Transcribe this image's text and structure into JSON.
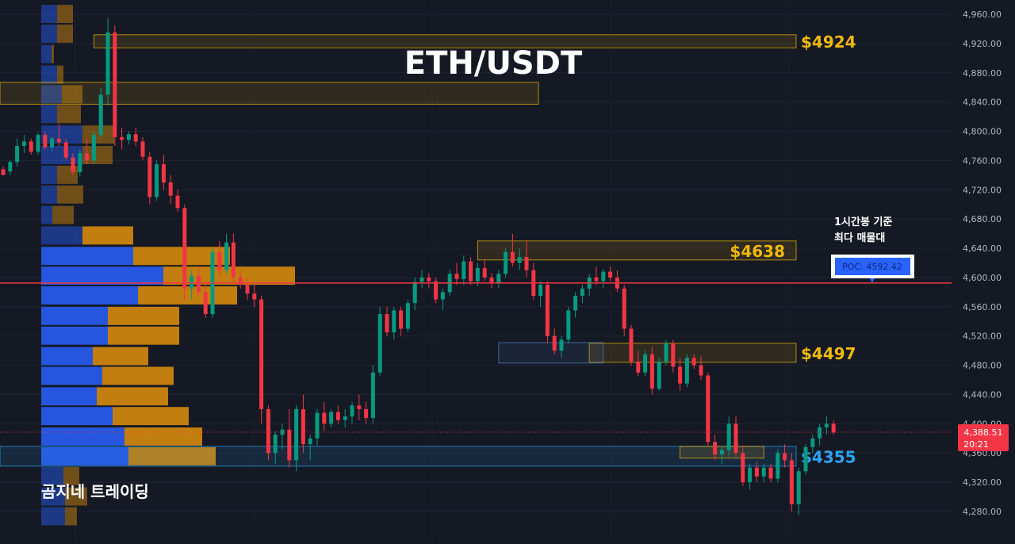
{
  "chart_data": {
    "type": "candlestick",
    "title": "ETH/USDT",
    "watermark": "곰지네 트레이딩",
    "annotation": [
      "1시간봉 기준",
      "최다 매물대"
    ],
    "y_axis": {
      "range": [
        4240,
        4975
      ],
      "ticks": [
        4280,
        4320,
        4360,
        4400,
        4440,
        4480,
        4520,
        4560,
        4600,
        4640,
        4680,
        4720,
        4760,
        4800,
        4840,
        4880,
        4920,
        4960
      ],
      "tick_labels": [
        "4,280.00",
        "4,320.00",
        "4,360.00",
        "4,400.00",
        "4,440.00",
        "4,480.00",
        "4,520.00",
        "4,560.00",
        "4,600.00",
        "4,640.00",
        "4,680.00",
        "4,720.00",
        "4,760.00",
        "4,800.00",
        "4,840.00",
        "4,880.00",
        "4,920.00",
        "4,960.00"
      ]
    },
    "poc": {
      "label": "POC: 4592.42",
      "price": 4592.42,
      "color": "#f23645"
    },
    "current_price": {
      "label": "4,388.51",
      "countdown": "20:21",
      "price": 4388.51,
      "color": "#f23645"
    },
    "zones": [
      {
        "label": "$4924",
        "top": 4932,
        "bottom": 4914,
        "start": 13,
        "color": "#f0b90b"
      },
      {
        "label": "",
        "top": 4867,
        "bottom": 4837,
        "start": -1,
        "end_price_x": 0.53,
        "color": "#f0b90b"
      },
      {
        "label": "$4638",
        "top": 4650,
        "bottom": 4624,
        "start": 68,
        "color": "#f0b90b"
      },
      {
        "label": "$4497",
        "top": 4510,
        "bottom": 4484,
        "start": 84,
        "color": "#f0b90b"
      },
      {
        "label": "",
        "top": 4511,
        "bottom": 4483,
        "start": 71,
        "end": 86,
        "color": "#4c82c7"
      },
      {
        "label": "$4355",
        "top": 4369,
        "bottom": 4342,
        "start": -1,
        "color": "#2aa5f5"
      },
      {
        "label": "",
        "top": 4369,
        "bottom": 4353,
        "start": 97,
        "end": 109,
        "color": "#f0b90b"
      }
    ],
    "volume_profile": {
      "bins_low": [
        4260,
        4287,
        4315,
        4342,
        4369,
        4397,
        4424,
        4452,
        4479,
        4507,
        4534,
        4562,
        4589,
        4616,
        4644,
        4672,
        4700,
        4727,
        4754,
        4782,
        4810,
        4837,
        4864,
        4892,
        4920,
        4947
      ],
      "buy": [
        30,
        30,
        28,
        110,
        105,
        90,
        70,
        77,
        65,
        84,
        84,
        122,
        154,
        116,
        52,
        14,
        20,
        20,
        52,
        52,
        20,
        26,
        20,
        13,
        20,
        20
      ],
      "sell": [
        15,
        28,
        20,
        110,
        98,
        96,
        90,
        90,
        70,
        90,
        90,
        125,
        166,
        122,
        64,
        27,
        33,
        26,
        38,
        40,
        30,
        26,
        8,
        3,
        20,
        20
      ]
    },
    "candles": [
      [
        4748,
        4752,
        4742,
        4740
      ],
      [
        4745,
        4760,
        4740,
        4758
      ],
      [
        4758,
        4790,
        4752,
        4780
      ],
      [
        4780,
        4795,
        4770,
        4786
      ],
      [
        4786,
        4790,
        4768,
        4772
      ],
      [
        4772,
        4798,
        4768,
        4795
      ],
      [
        4795,
        4800,
        4775,
        4778
      ],
      [
        4778,
        4792,
        4772,
        4790
      ],
      [
        4790,
        4810,
        4780,
        4785
      ],
      [
        4785,
        4790,
        4760,
        4764
      ],
      [
        4764,
        4770,
        4740,
        4744
      ],
      [
        4744,
        4775,
        4738,
        4770
      ],
      [
        4770,
        4790,
        4755,
        4760
      ],
      [
        4760,
        4800,
        4755,
        4795
      ],
      [
        4795,
        4860,
        4790,
        4850
      ],
      [
        4850,
        4955,
        4835,
        4935
      ],
      [
        4935,
        4945,
        4780,
        4792
      ],
      [
        4792,
        4805,
        4775,
        4788
      ],
      [
        4788,
        4800,
        4782,
        4796
      ],
      [
        4796,
        4805,
        4780,
        4786
      ],
      [
        4786,
        4792,
        4760,
        4765
      ],
      [
        4765,
        4772,
        4700,
        4710
      ],
      [
        4710,
        4760,
        4705,
        4755
      ],
      [
        4755,
        4768,
        4720,
        4730
      ],
      [
        4730,
        4740,
        4700,
        4712
      ],
      [
        4712,
        4720,
        4690,
        4695
      ],
      [
        4695,
        4700,
        4570,
        4585
      ],
      [
        4585,
        4610,
        4570,
        4602
      ],
      [
        4602,
        4615,
        4575,
        4580
      ],
      [
        4580,
        4590,
        4545,
        4550
      ],
      [
        4550,
        4640,
        4545,
        4635
      ],
      [
        4635,
        4650,
        4600,
        4610
      ],
      [
        4610,
        4660,
        4605,
        4648
      ],
      [
        4648,
        4660,
        4595,
        4600
      ],
      [
        4600,
        4610,
        4585,
        4590
      ],
      [
        4590,
        4600,
        4570,
        4578
      ],
      [
        4578,
        4590,
        4560,
        4570
      ],
      [
        4570,
        4575,
        4400,
        4420
      ],
      [
        4420,
        4425,
        4350,
        4360
      ],
      [
        4360,
        4390,
        4345,
        4385
      ],
      [
        4385,
        4400,
        4365,
        4392
      ],
      [
        4392,
        4420,
        4340,
        4350
      ],
      [
        4350,
        4425,
        4335,
        4420
      ],
      [
        4420,
        4440,
        4360,
        4372
      ],
      [
        4372,
        4385,
        4350,
        4380
      ],
      [
        4380,
        4420,
        4370,
        4415
      ],
      [
        4415,
        4430,
        4390,
        4400
      ],
      [
        4400,
        4420,
        4395,
        4416
      ],
      [
        4416,
        4425,
        4400,
        4405
      ],
      [
        4405,
        4420,
        4395,
        4410
      ],
      [
        4410,
        4430,
        4400,
        4425
      ],
      [
        4425,
        4440,
        4405,
        4420
      ],
      [
        4420,
        4430,
        4400,
        4408
      ],
      [
        4408,
        4480,
        4400,
        4470
      ],
      [
        4470,
        4560,
        4465,
        4550
      ],
      [
        4550,
        4560,
        4520,
        4525
      ],
      [
        4525,
        4560,
        4515,
        4555
      ],
      [
        4555,
        4560,
        4520,
        4530
      ],
      [
        4530,
        4570,
        4525,
        4565
      ],
      [
        4565,
        4600,
        4555,
        4594
      ],
      [
        4594,
        4610,
        4585,
        4600
      ],
      [
        4600,
        4606,
        4585,
        4595
      ],
      [
        4595,
        4600,
        4565,
        4570
      ],
      [
        4570,
        4585,
        4555,
        4580
      ],
      [
        4580,
        4610,
        4575,
        4605
      ],
      [
        4605,
        4620,
        4590,
        4598
      ],
      [
        4598,
        4630,
        4590,
        4622
      ],
      [
        4622,
        4628,
        4590,
        4595
      ],
      [
        4595,
        4620,
        4588,
        4613
      ],
      [
        4613,
        4625,
        4595,
        4600
      ],
      [
        4600,
        4606,
        4585,
        4592
      ],
      [
        4592,
        4610,
        4585,
        4605
      ],
      [
        4605,
        4640,
        4600,
        4635
      ],
      [
        4635,
        4660,
        4615,
        4620
      ],
      [
        4620,
        4640,
        4610,
        4628
      ],
      [
        4628,
        4650,
        4600,
        4610
      ],
      [
        4610,
        4620,
        4570,
        4575
      ],
      [
        4575,
        4595,
        4560,
        4590
      ],
      [
        4590,
        4595,
        4510,
        4520
      ],
      [
        4520,
        4530,
        4495,
        4500
      ],
      [
        4500,
        4520,
        4490,
        4515
      ],
      [
        4515,
        4560,
        4510,
        4555
      ],
      [
        4555,
        4580,
        4545,
        4575
      ],
      [
        4575,
        4590,
        4565,
        4585
      ],
      [
        4585,
        4605,
        4575,
        4600
      ],
      [
        4600,
        4615,
        4590,
        4595
      ],
      [
        4595,
        4612,
        4585,
        4608
      ],
      [
        4608,
        4615,
        4595,
        4600
      ],
      [
        4600,
        4610,
        4580,
        4585
      ],
      [
        4585,
        4590,
        4520,
        4530
      ],
      [
        4530,
        4535,
        4480,
        4485
      ],
      [
        4485,
        4500,
        4465,
        4470
      ],
      [
        4470,
        4500,
        4465,
        4495
      ],
      [
        4495,
        4505,
        4440,
        4448
      ],
      [
        4448,
        4490,
        4445,
        4485
      ],
      [
        4485,
        4515,
        4480,
        4510
      ],
      [
        4510,
        4515,
        4470,
        4478
      ],
      [
        4478,
        4490,
        4445,
        4455
      ],
      [
        4455,
        4495,
        4450,
        4490
      ],
      [
        4490,
        4495,
        4475,
        4480
      ],
      [
        4480,
        4492,
        4460,
        4466
      ],
      [
        4466,
        4470,
        4370,
        4375
      ],
      [
        4375,
        4385,
        4350,
        4358
      ],
      [
        4358,
        4370,
        4345,
        4364
      ],
      [
        4364,
        4410,
        4355,
        4400
      ],
      [
        4400,
        4410,
        4355,
        4360
      ],
      [
        4360,
        4370,
        4315,
        4320
      ],
      [
        4320,
        4345,
        4310,
        4340
      ],
      [
        4340,
        4348,
        4320,
        4328
      ],
      [
        4328,
        4345,
        4320,
        4340
      ],
      [
        4340,
        4345,
        4320,
        4325
      ],
      [
        4325,
        4365,
        4320,
        4360
      ],
      [
        4360,
        4372,
        4340,
        4350
      ],
      [
        4350,
        4360,
        4280,
        4290
      ],
      [
        4290,
        4340,
        4275,
        4335
      ],
      [
        4335,
        4372,
        4330,
        4368
      ],
      [
        4368,
        4385,
        4360,
        4380
      ],
      [
        4380,
        4400,
        4370,
        4395
      ],
      [
        4395,
        4410,
        4385,
        4400
      ],
      [
        4400,
        4405,
        4385,
        4388
      ]
    ],
    "colors": {
      "up": "#089981",
      "down": "#f23645",
      "buy_profile": "#2962ff",
      "sell_profile": "#e0900a",
      "background": "#151924"
    }
  }
}
